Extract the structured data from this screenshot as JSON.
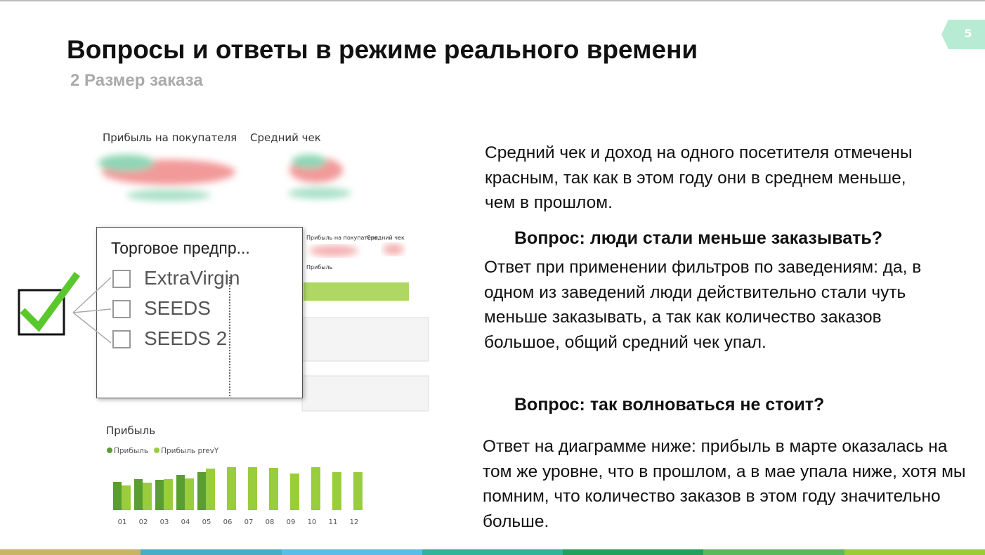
{
  "header": {
    "title": "Вопросы и ответы в режиме реального времени",
    "subtitle": "2 Размер заказа",
    "page_number": "5"
  },
  "text": {
    "paragraph_1": "Средний чек и доход на одного посетителя отмечены красным, так как в этом году они в среднем меньше, чем в прошлом.",
    "question_1": "Вопрос: люди стали меньше заказывать?",
    "answer_1": "Ответ при применении фильтров по заведениям: да, в одном из заведений люди действительно стали чуть меньше заказывать, а так как количество заказов большое, общий средний чек упал.",
    "question_2": "Вопрос: так волноваться не стоит?",
    "answer_2": "Ответ на диаграмме ниже: прибыль в марте оказалась на том же уровне, что в прошлом, а в мае упала ниже, хотя мы помним, что количество заказов в этом году значительно больше."
  },
  "screenshot": {
    "card_1": "Прибыль на покупателя",
    "card_2": "Средний чек",
    "filter": {
      "title": "Торговое предпр...",
      "options": [
        "ExtraVirgin",
        "SEEDS",
        "SEEDS 2"
      ]
    },
    "thumbnail": {
      "card_1": "Прибыль на покупателя",
      "card_2": "Средний чек",
      "chart_title": "Прибыль"
    }
  },
  "chart_data": {
    "type": "bar",
    "title": "Прибыль",
    "categories": [
      "01",
      "02",
      "03",
      "04",
      "05",
      "06",
      "07",
      "08",
      "09",
      "10",
      "11",
      "12"
    ],
    "series": [
      {
        "name": "Прибыль",
        "color": "#5a9e32",
        "values": [
          40,
          44,
          43,
          50,
          54,
          null,
          null,
          null,
          null,
          null,
          null,
          null
        ]
      },
      {
        "name": "Прибыль prevY",
        "color": "#9acd3c",
        "values": [
          35,
          39,
          44,
          45,
          59,
          61,
          61,
          60,
          52,
          61,
          54,
          54
        ]
      }
    ],
    "ylim": [
      0,
      70
    ]
  }
}
